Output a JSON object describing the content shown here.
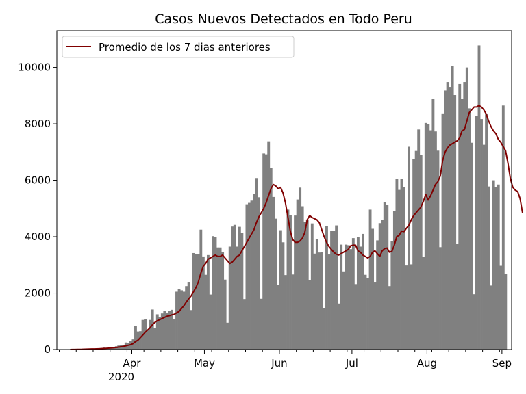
{
  "chart_data": {
    "type": "bar",
    "title": "Casos Nuevos Detectados en Todo Peru",
    "xlabel": "",
    "ylabel": "",
    "x_start": "2020-03-06",
    "x_end": "2020-09-04",
    "xlim": [
      "2020-03-01",
      "2020-09-05"
    ],
    "ylim": [
      0,
      11300
    ],
    "yticks": [
      0,
      2000,
      4000,
      6000,
      8000,
      10000
    ],
    "xticks": [
      {
        "date": "2020-04-01",
        "label": "Apr"
      },
      {
        "date": "2020-05-01",
        "label": "May"
      },
      {
        "date": "2020-06-01",
        "label": "Jun"
      },
      {
        "date": "2020-07-01",
        "label": "Jul"
      },
      {
        "date": "2020-08-01",
        "label": "Aug"
      },
      {
        "date": "2020-09-01",
        "label": "Sep"
      }
    ],
    "year_label": "2020",
    "legend": {
      "label": "Promedio de los 7 dias anteriores",
      "position": "upper-left"
    },
    "colors": {
      "bars": "#808080",
      "line": "#800000"
    },
    "series": [
      {
        "type": "bar",
        "values": [
          1,
          5,
          5,
          10,
          10,
          20,
          15,
          20,
          30,
          25,
          25,
          35,
          40,
          55,
          70,
          65,
          95,
          90,
          85,
          115,
          140,
          150,
          170,
          250,
          220,
          290,
          360,
          840,
          640,
          650,
          1050,
          1080,
          690,
          1050,
          1420,
          760,
          1250,
          1150,
          1280,
          1380,
          1310,
          1380,
          1410,
          1080,
          2050,
          2150,
          2100,
          2050,
          2250,
          2400,
          1400,
          3420,
          3380,
          3380,
          4250,
          3300,
          2650,
          3350,
          1950,
          4020,
          3980,
          3620,
          3620,
          3450,
          2480,
          950,
          3650,
          4360,
          4420,
          3650,
          4350,
          4130,
          1790,
          5150,
          5200,
          5280,
          5520,
          6080,
          5400,
          1800,
          6950,
          6920,
          7380,
          6430,
          5410,
          4640,
          2280,
          4230,
          3800,
          2640,
          4960,
          4770,
          2660,
          4750,
          5320,
          5740,
          5080,
          4530,
          4600,
          2460,
          4470,
          3400,
          3910,
          3440,
          3450,
          1470,
          4370,
          3370,
          4200,
          4210,
          4400,
          1630,
          3720,
          2770,
          3720,
          3700,
          3560,
          3950,
          2320,
          3980,
          3650,
          4100,
          2650,
          2530,
          4960,
          4280,
          2400,
          3870,
          4480,
          4600,
          5230,
          5120,
          2250,
          3850,
          4920,
          6060,
          5660,
          6050,
          5760,
          2980,
          7190,
          3020,
          6760,
          7040,
          7800,
          6890,
          3280,
          8030,
          7980,
          7770,
          8890,
          7730,
          7050,
          3630,
          8370,
          9180,
          9480,
          9310,
          10040,
          9020,
          3750,
          9410,
          8880,
          9480,
          10000,
          8550,
          7330,
          1960,
          8290,
          10780,
          8170,
          7260,
          8340,
          5780,
          2270,
          6000,
          5770,
          5850,
          2970,
          8650,
          2680
        ]
      },
      {
        "type": "line",
        "name": "Promedio de los 7 dias anteriores",
        "values": [
          1,
          3,
          4,
          5,
          6,
          8,
          12,
          15,
          18,
          21,
          22,
          25,
          28,
          32,
          38,
          44,
          52,
          58,
          63,
          72,
          85,
          98,
          110,
          130,
          150,
          170,
          210,
          280,
          330,
          420,
          510,
          610,
          690,
          770,
          880,
          960,
          1020,
          1060,
          1100,
          1140,
          1180,
          1200,
          1230,
          1250,
          1300,
          1350,
          1450,
          1550,
          1680,
          1800,
          1900,
          2050,
          2200,
          2400,
          2700,
          2950,
          3050,
          3200,
          3250,
          3300,
          3350,
          3300,
          3300,
          3350,
          3250,
          3150,
          3050,
          3100,
          3200,
          3300,
          3350,
          3500,
          3650,
          3800,
          3950,
          4100,
          4250,
          4500,
          4700,
          4850,
          5000,
          5200,
          5450,
          5700,
          5850,
          5800,
          5700,
          5750,
          5550,
          5200,
          4700,
          4200,
          3900,
          3800,
          3800,
          3850,
          3950,
          4150,
          4600,
          4750,
          4680,
          4640,
          4600,
          4500,
          4250,
          4000,
          3800,
          3650,
          3550,
          3450,
          3380,
          3350,
          3400,
          3450,
          3500,
          3550,
          3680,
          3700,
          3700,
          3500,
          3450,
          3350,
          3300,
          3250,
          3300,
          3450,
          3500,
          3400,
          3300,
          3500,
          3580,
          3600,
          3450,
          3480,
          3700,
          4000,
          4050,
          4200,
          4180,
          4300,
          4400,
          4600,
          4750,
          4850,
          4950,
          5050,
          5250,
          5500,
          5300,
          5450,
          5650,
          5850,
          5950,
          6150,
          6700,
          7000,
          7150,
          7250,
          7300,
          7350,
          7400,
          7500,
          7750,
          7800,
          8100,
          8400,
          8500,
          8600,
          8600,
          8650,
          8600,
          8500,
          8350,
          8100,
          7900,
          7750,
          7650,
          7450,
          7350,
          7200,
          7050,
          6600,
          6050,
          5750,
          5650,
          5600,
          5350,
          4850
        ]
      }
    ]
  }
}
